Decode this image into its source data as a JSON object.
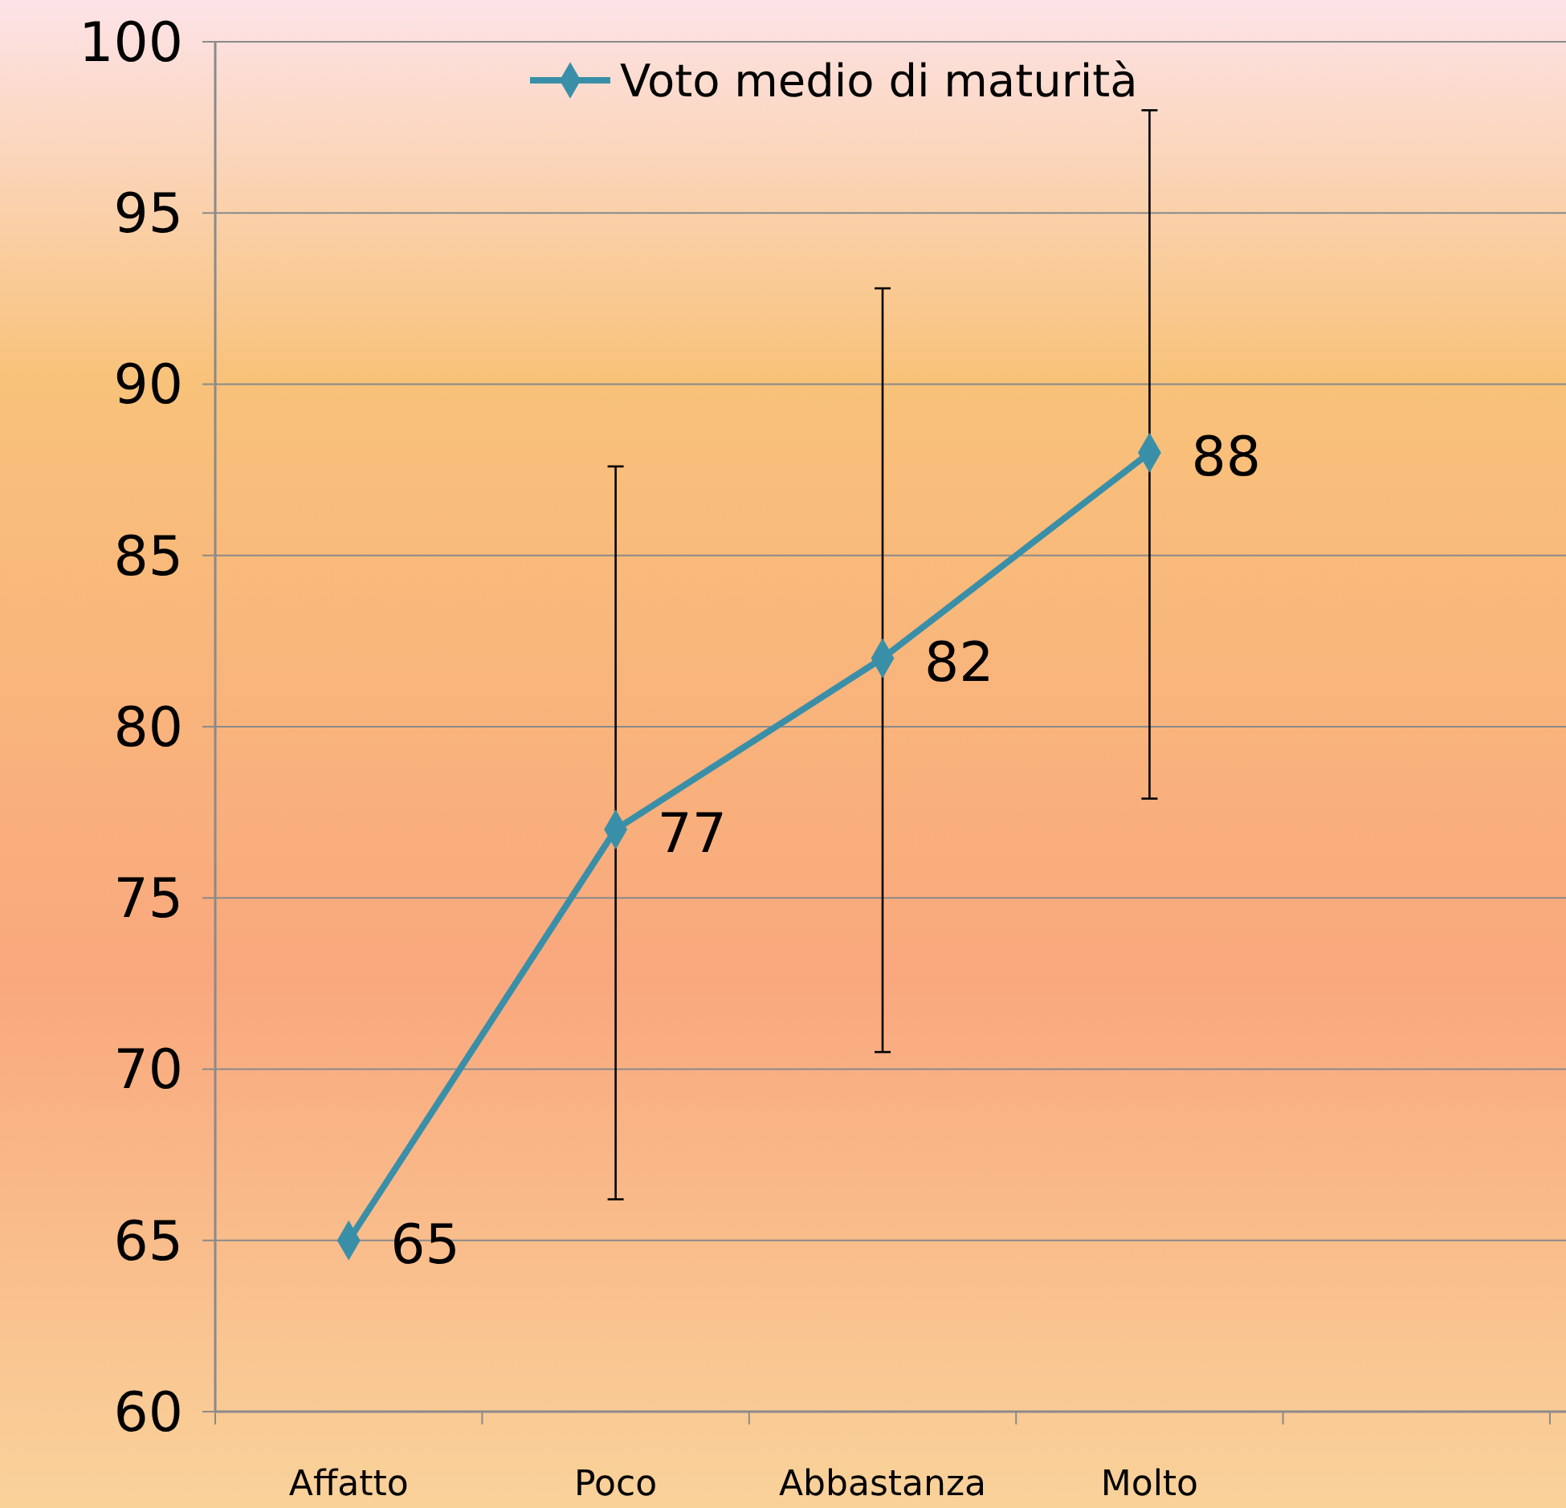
{
  "chart_data": {
    "type": "line",
    "categories": [
      "Affatto",
      "Poco",
      "Abbastanza",
      "Molto",
      null
    ],
    "series": [
      {
        "name": "Voto medio di maturità",
        "color": "#3a8fa8",
        "values": [
          65,
          77,
          82,
          88,
          null
        ],
        "errors": [
          null,
          [
            66.2,
            87.6
          ],
          [
            70.5,
            92.8
          ],
          [
            77.9,
            98
          ],
          null
        ]
      }
    ],
    "ylim": [
      60,
      100
    ],
    "yticks": [
      60,
      65,
      70,
      75,
      80,
      85,
      90,
      95,
      100
    ],
    "grid": "y",
    "legend": "top",
    "marker": "diamond",
    "line_style": "solid",
    "data_labels": true
  }
}
